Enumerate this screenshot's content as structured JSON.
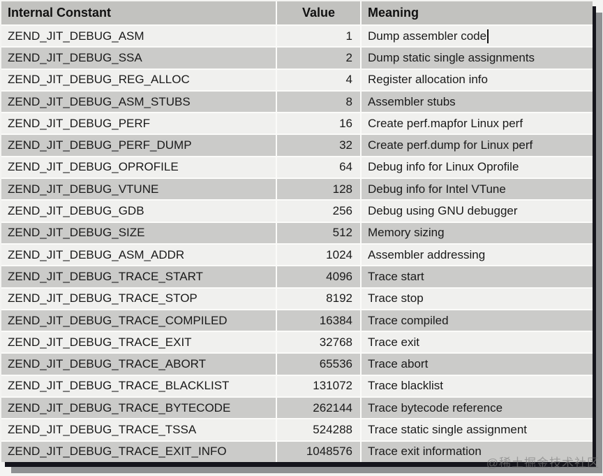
{
  "watermark": "@稀土掘金技术社区",
  "colors": {
    "header_bg": "#c2c2bf",
    "row_gray": "#cbcbc9",
    "row_light": "#f0f0ee",
    "separator": "#fbfbf9",
    "border_dark": "#15151c",
    "shadow_gray": "#8f9193",
    "text": "#1a1a1a"
  },
  "table": {
    "columns": {
      "constant": "Internal Constant",
      "value": "Value",
      "meaning": "Meaning"
    },
    "rows": [
      {
        "constant": "ZEND_JIT_DEBUG_ASM",
        "value": "1",
        "meaning": "Dump assembler code",
        "cursor": true
      },
      {
        "constant": "ZEND_JIT_DEBUG_SSA",
        "value": "2",
        "meaning": "Dump static single assignments"
      },
      {
        "constant": "ZEND_JIT_DEBUG_REG_ALLOC",
        "value": "4",
        "meaning": "Register allocation info"
      },
      {
        "constant": "ZEND_JIT_DEBUG_ASM_STUBS",
        "value": "8",
        "meaning": "Assembler stubs"
      },
      {
        "constant": "ZEND_JIT_DEBUG_PERF",
        "value": "16",
        "meaning": "Create perf.mapfor Linux perf"
      },
      {
        "constant": "ZEND_JIT_DEBUG_PERF_DUMP",
        "value": "32",
        "meaning": "Create perf.dump for Linux perf"
      },
      {
        "constant": "ZEND_JIT_DEBUG_OPROFILE",
        "value": "64",
        "meaning": "Debug info for Linux Oprofile"
      },
      {
        "constant": "ZEND_JIT_DEBUG_VTUNE",
        "value": "128",
        "meaning": "Debug info for Intel VTune"
      },
      {
        "constant": "ZEND_JIT_DEBUG_GDB",
        "value": "256",
        "meaning": "Debug using GNU debugger"
      },
      {
        "constant": "ZEND_JIT_DEBUG_SIZE",
        "value": "512",
        "meaning": "Memory sizing"
      },
      {
        "constant": "ZEND_JIT_DEBUG_ASM_ADDR",
        "value": "1024",
        "meaning": "Assembler addressing"
      },
      {
        "constant": "ZEND_JIT_DEBUG_TRACE_START",
        "value": "4096",
        "meaning": "Trace start"
      },
      {
        "constant": "ZEND_JIT_DEBUG_TRACE_STOP",
        "value": "8192",
        "meaning": "Trace stop"
      },
      {
        "constant": "ZEND_JIT_DEBUG_TRACE_COMPILED",
        "value": "16384",
        "meaning": "Trace compiled"
      },
      {
        "constant": "ZEND_JIT_DEBUG_TRACE_EXIT",
        "value": "32768",
        "meaning": "Trace exit"
      },
      {
        "constant": "ZEND_JIT_DEBUG_TRACE_ABORT",
        "value": "65536",
        "meaning": "Trace abort"
      },
      {
        "constant": "ZEND_JIT_DEBUG_TRACE_BLACKLIST",
        "value": "131072",
        "meaning": "Trace blacklist"
      },
      {
        "constant": "ZEND_JIT_DEBUG_TRACE_BYTECODE",
        "value": "262144",
        "meaning": "Trace bytecode reference"
      },
      {
        "constant": "ZEND_JIT_DEBUG_TRACE_TSSA",
        "value": "524288",
        "meaning": "Trace static single assignment"
      },
      {
        "constant": "ZEND_JIT_DEBUG_TRACE_EXIT_INFO",
        "value": "1048576",
        "meaning": "Trace exit information"
      }
    ]
  }
}
